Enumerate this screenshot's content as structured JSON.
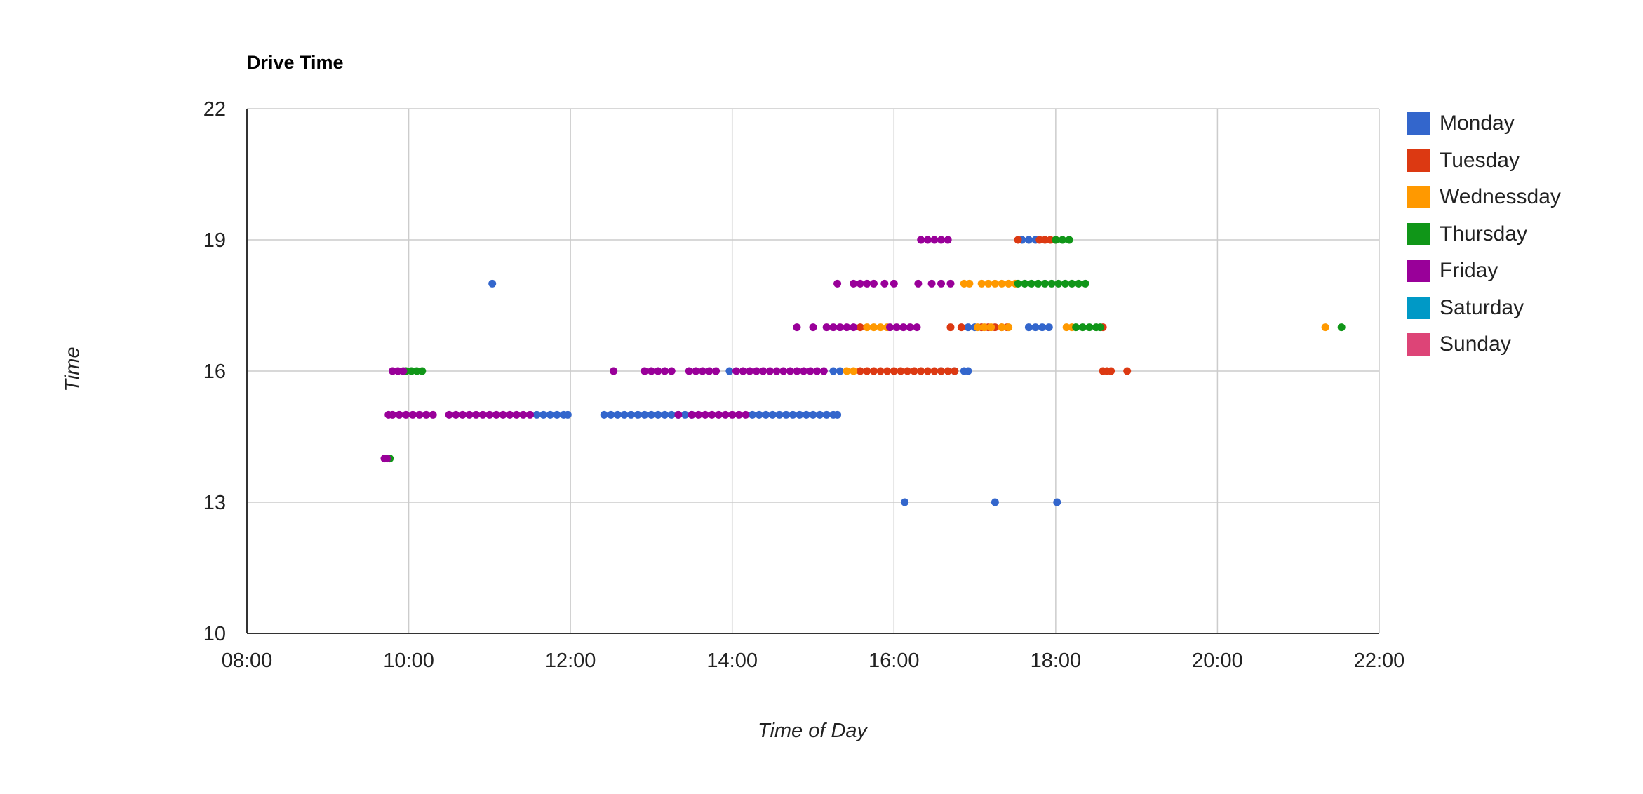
{
  "chart_data": {
    "type": "scatter",
    "title": "Drive Time",
    "xlabel": "Time of Day",
    "ylabel": "Time",
    "xlim": [
      "08:00",
      "22:00"
    ],
    "ylim": [
      10,
      22
    ],
    "x_ticks": [
      "08:00",
      "10:00",
      "12:00",
      "14:00",
      "16:00",
      "18:00",
      "20:00",
      "22:00"
    ],
    "y_ticks": [
      "10",
      "13",
      "16",
      "19",
      "22"
    ],
    "grid": true,
    "legend_position": "right",
    "series": [
      {
        "name": "Monday",
        "color": "#3366cc",
        "points": [
          [
            "11:02",
            18
          ],
          [
            "16:08",
            13
          ],
          [
            "17:15",
            13
          ],
          [
            "18:01",
            13
          ],
          [
            "17:35",
            19
          ],
          [
            "17:40",
            19
          ],
          [
            "17:45",
            19
          ],
          [
            "17:40",
            17
          ],
          [
            "17:45",
            17
          ],
          [
            "17:50",
            17
          ],
          [
            "17:55",
            17
          ],
          [
            "16:55",
            17
          ],
          [
            "17:00",
            17
          ],
          [
            "15:15",
            16
          ],
          [
            "15:20",
            16
          ],
          [
            "16:35",
            16
          ],
          [
            "16:45",
            16
          ],
          [
            "16:52",
            16
          ],
          [
            "16:55",
            16
          ],
          [
            "13:58",
            16
          ],
          [
            "11:35",
            15
          ],
          [
            "11:40",
            15
          ],
          [
            "11:45",
            15
          ],
          [
            "11:50",
            15
          ],
          [
            "11:55",
            15
          ],
          [
            "11:58",
            15
          ],
          [
            "12:25",
            15
          ],
          [
            "12:30",
            15
          ],
          [
            "12:35",
            15
          ],
          [
            "12:40",
            15
          ],
          [
            "12:45",
            15
          ],
          [
            "12:50",
            15
          ],
          [
            "12:55",
            15
          ],
          [
            "13:00",
            15
          ],
          [
            "13:05",
            15
          ],
          [
            "13:10",
            15
          ],
          [
            "13:15",
            15
          ],
          [
            "13:20",
            15
          ],
          [
            "13:25",
            15
          ],
          [
            "13:30",
            15
          ],
          [
            "14:15",
            15
          ],
          [
            "14:20",
            15
          ],
          [
            "14:25",
            15
          ],
          [
            "14:30",
            15
          ],
          [
            "14:35",
            15
          ],
          [
            "14:40",
            15
          ],
          [
            "14:45",
            15
          ],
          [
            "14:50",
            15
          ],
          [
            "14:55",
            15
          ],
          [
            "15:00",
            15
          ],
          [
            "15:05",
            15
          ],
          [
            "15:10",
            15
          ],
          [
            "15:15",
            15
          ],
          [
            "15:18",
            15
          ]
        ]
      },
      {
        "name": "Tuesday",
        "color": "#dc3912",
        "points": [
          [
            "17:32",
            19
          ],
          [
            "17:48",
            19
          ],
          [
            "17:52",
            19
          ],
          [
            "17:56",
            19
          ],
          [
            "18:00",
            19
          ],
          [
            "15:35",
            17
          ],
          [
            "16:42",
            17
          ],
          [
            "16:50",
            17
          ],
          [
            "17:05",
            17
          ],
          [
            "17:10",
            17
          ],
          [
            "17:15",
            17
          ],
          [
            "17:20",
            17
          ],
          [
            "17:24",
            17
          ],
          [
            "18:35",
            17
          ],
          [
            "15:35",
            16
          ],
          [
            "15:40",
            16
          ],
          [
            "15:45",
            16
          ],
          [
            "15:50",
            16
          ],
          [
            "15:55",
            16
          ],
          [
            "16:00",
            16
          ],
          [
            "16:05",
            16
          ],
          [
            "16:10",
            16
          ],
          [
            "16:15",
            16
          ],
          [
            "16:20",
            16
          ],
          [
            "16:25",
            16
          ],
          [
            "16:30",
            16
          ],
          [
            "16:35",
            16
          ],
          [
            "16:40",
            16
          ],
          [
            "16:45",
            16
          ],
          [
            "18:35",
            16
          ],
          [
            "18:38",
            16
          ],
          [
            "18:41",
            16
          ],
          [
            "18:53",
            16
          ]
        ]
      },
      {
        "name": "Wednessday",
        "color": "#ff9900",
        "points": [
          [
            "16:52",
            18
          ],
          [
            "16:56",
            18
          ],
          [
            "17:05",
            18
          ],
          [
            "17:10",
            18
          ],
          [
            "17:15",
            18
          ],
          [
            "17:20",
            18
          ],
          [
            "17:25",
            18
          ],
          [
            "17:30",
            18
          ],
          [
            "15:40",
            17
          ],
          [
            "15:45",
            17
          ],
          [
            "15:50",
            17
          ],
          [
            "15:55",
            17
          ],
          [
            "17:02",
            17
          ],
          [
            "17:07",
            17
          ],
          [
            "17:12",
            17
          ],
          [
            "17:20",
            17
          ],
          [
            "17:25",
            17
          ],
          [
            "18:08",
            17
          ],
          [
            "18:12",
            17
          ],
          [
            "15:25",
            16
          ],
          [
            "15:30",
            16
          ],
          [
            "21:20",
            17
          ]
        ]
      },
      {
        "name": "Thursday",
        "color": "#109618",
        "points": [
          [
            "18:00",
            19
          ],
          [
            "18:05",
            19
          ],
          [
            "18:10",
            19
          ],
          [
            "17:32",
            18
          ],
          [
            "17:37",
            18
          ],
          [
            "17:42",
            18
          ],
          [
            "17:47",
            18
          ],
          [
            "17:52",
            18
          ],
          [
            "17:57",
            18
          ],
          [
            "18:02",
            18
          ],
          [
            "18:07",
            18
          ],
          [
            "18:12",
            18
          ],
          [
            "18:17",
            18
          ],
          [
            "18:22",
            18
          ],
          [
            "18:15",
            17
          ],
          [
            "18:20",
            17
          ],
          [
            "18:25",
            17
          ],
          [
            "18:30",
            17
          ],
          [
            "18:33",
            17
          ],
          [
            "21:32",
            17
          ],
          [
            "09:58",
            16
          ],
          [
            "10:02",
            16
          ],
          [
            "10:06",
            16
          ],
          [
            "10:10",
            16
          ],
          [
            "09:46",
            14
          ]
        ]
      },
      {
        "name": "Friday",
        "color": "#990099",
        "points": [
          [
            "16:20",
            19
          ],
          [
            "16:25",
            19
          ],
          [
            "16:30",
            19
          ],
          [
            "16:35",
            19
          ],
          [
            "16:40",
            19
          ],
          [
            "15:18",
            18
          ],
          [
            "15:30",
            18
          ],
          [
            "15:35",
            18
          ],
          [
            "15:40",
            18
          ],
          [
            "15:45",
            18
          ],
          [
            "15:53",
            18
          ],
          [
            "16:00",
            18
          ],
          [
            "16:18",
            18
          ],
          [
            "16:28",
            18
          ],
          [
            "16:35",
            18
          ],
          [
            "16:42",
            18
          ],
          [
            "14:48",
            17
          ],
          [
            "15:00",
            17
          ],
          [
            "15:10",
            17
          ],
          [
            "15:15",
            17
          ],
          [
            "15:20",
            17
          ],
          [
            "15:25",
            17
          ],
          [
            "15:30",
            17
          ],
          [
            "15:57",
            17
          ],
          [
            "16:02",
            17
          ],
          [
            "16:07",
            17
          ],
          [
            "16:12",
            17
          ],
          [
            "16:17",
            17
          ],
          [
            "09:48",
            16
          ],
          [
            "09:52",
            16
          ],
          [
            "09:56",
            16
          ],
          [
            "12:32",
            16
          ],
          [
            "12:55",
            16
          ],
          [
            "13:00",
            16
          ],
          [
            "13:05",
            16
          ],
          [
            "13:10",
            16
          ],
          [
            "13:15",
            16
          ],
          [
            "13:28",
            16
          ],
          [
            "13:33",
            16
          ],
          [
            "13:38",
            16
          ],
          [
            "13:43",
            16
          ],
          [
            "13:48",
            16
          ],
          [
            "14:03",
            16
          ],
          [
            "14:08",
            16
          ],
          [
            "14:13",
            16
          ],
          [
            "14:18",
            16
          ],
          [
            "14:23",
            16
          ],
          [
            "14:28",
            16
          ],
          [
            "14:33",
            16
          ],
          [
            "14:38",
            16
          ],
          [
            "14:43",
            16
          ],
          [
            "14:48",
            16
          ],
          [
            "14:53",
            16
          ],
          [
            "14:58",
            16
          ],
          [
            "15:03",
            16
          ],
          [
            "15:08",
            16
          ],
          [
            "09:45",
            15
          ],
          [
            "09:48",
            15
          ],
          [
            "09:53",
            15
          ],
          [
            "09:58",
            15
          ],
          [
            "10:03",
            15
          ],
          [
            "10:08",
            15
          ],
          [
            "10:13",
            15
          ],
          [
            "10:18",
            15
          ],
          [
            "10:30",
            15
          ],
          [
            "10:35",
            15
          ],
          [
            "10:40",
            15
          ],
          [
            "10:45",
            15
          ],
          [
            "10:50",
            15
          ],
          [
            "10:55",
            15
          ],
          [
            "11:00",
            15
          ],
          [
            "11:05",
            15
          ],
          [
            "11:10",
            15
          ],
          [
            "11:15",
            15
          ],
          [
            "11:20",
            15
          ],
          [
            "11:25",
            15
          ],
          [
            "11:30",
            15
          ],
          [
            "13:20",
            15
          ],
          [
            "13:30",
            15
          ],
          [
            "13:35",
            15
          ],
          [
            "13:40",
            15
          ],
          [
            "13:45",
            15
          ],
          [
            "13:50",
            15
          ],
          [
            "13:55",
            15
          ],
          [
            "14:00",
            15
          ],
          [
            "14:05",
            15
          ],
          [
            "14:10",
            15
          ],
          [
            "09:42",
            14
          ],
          [
            "09:44",
            14
          ]
        ]
      },
      {
        "name": "Saturday",
        "color": "#0099c6",
        "points": []
      },
      {
        "name": "Sunday",
        "color": "#dd4477",
        "points": []
      }
    ]
  }
}
